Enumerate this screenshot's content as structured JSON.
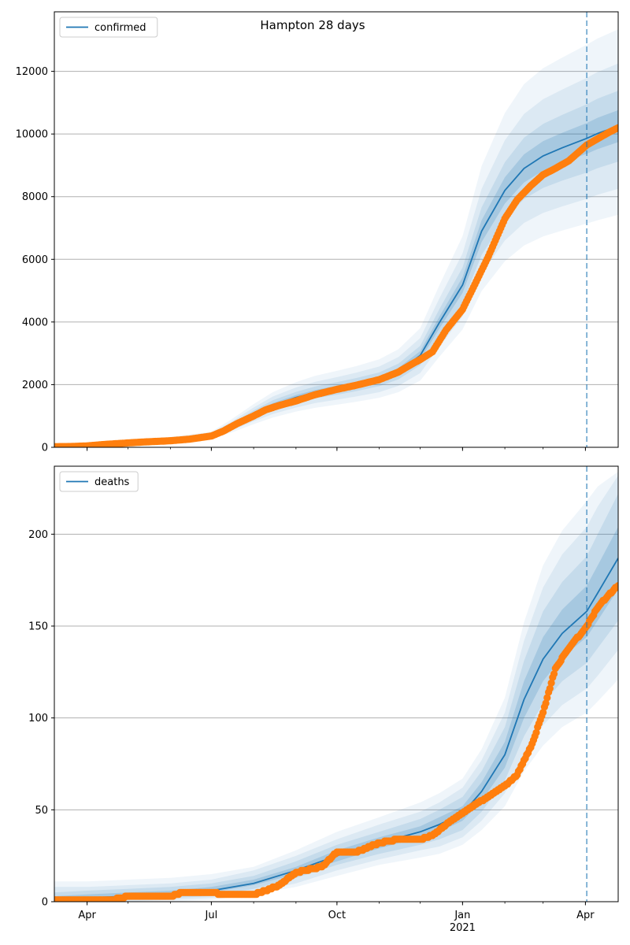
{
  "figure": {
    "title": "Hampton 28 days"
  },
  "colors": {
    "model_line": "#1f77b4",
    "observed_points": "#ff7f0e",
    "band": "#1f77b4",
    "grid": "#b0b0b0",
    "forecast_marker": "#1f77b4"
  },
  "chart_data": [
    {
      "type": "line",
      "title": "",
      "xlabel": "",
      "ylabel": "",
      "x_type": "date",
      "xlim": [
        "2020-03-08",
        "2021-04-25"
      ],
      "ylim": [
        0,
        13900
      ],
      "yticks": [
        0,
        2000,
        4000,
        6000,
        8000,
        10000,
        12000
      ],
      "grid": {
        "y": true,
        "x": false
      },
      "legend": {
        "entries": [
          "confirmed"
        ],
        "placement": "top-left"
      },
      "forecast_start": "2021-04-02",
      "x_ticks": [
        {
          "date": "2020-04-01",
          "label": "Apr"
        },
        {
          "date": "2020-07-01",
          "label": "Jul"
        },
        {
          "date": "2020-10-01",
          "label": "Oct"
        },
        {
          "date": "2021-01-01",
          "label": "Jan"
        },
        {
          "date": "2021-04-01",
          "label": "Apr"
        }
      ],
      "series": [
        {
          "name": "confirmed",
          "kind": "model",
          "dates": [
            "2020-03-08",
            "2020-04-01",
            "2020-05-01",
            "2020-06-01",
            "2020-07-01",
            "2020-07-15",
            "2020-08-01",
            "2020-08-15",
            "2020-09-01",
            "2020-09-15",
            "2020-10-01",
            "2020-10-15",
            "2020-11-01",
            "2020-11-15",
            "2020-12-01",
            "2020-12-15",
            "2021-01-01",
            "2021-01-15",
            "2021-02-01",
            "2021-02-15",
            "2021-03-01",
            "2021-03-15",
            "2021-04-02",
            "2021-04-10",
            "2021-04-25"
          ],
          "values": [
            0,
            60,
            150,
            250,
            390,
            660,
            1050,
            1340,
            1590,
            1750,
            1880,
            2000,
            2170,
            2420,
            2930,
            3980,
            5180,
            6900,
            8200,
            8900,
            9300,
            9560,
            9860,
            10020,
            10250
          ],
          "bands": [
            {
              "lower": [
                0,
                55,
                140,
                235,
                370,
                620,
                990,
                1270,
                1510,
                1670,
                1790,
                1910,
                2070,
                2310,
                2790,
                3790,
                4930,
                6550,
                7780,
                8450,
                8830,
                9080,
                9370,
                9520,
                9740
              ],
              "upper": [
                0,
                65,
                160,
                265,
                410,
                700,
                1110,
                1410,
                1670,
                1830,
                1970,
                2090,
                2270,
                2530,
                3070,
                4170,
                5430,
                7250,
                8620,
                9350,
                9770,
                10040,
                10350,
                10520,
                10760
              ]
            },
            {
              "lower": [
                0,
                50,
                130,
                215,
                345,
                580,
                920,
                1180,
                1410,
                1560,
                1680,
                1790,
                1950,
                2170,
                2620,
                3550,
                4620,
                6140,
                7300,
                7920,
                8280,
                8510,
                8770,
                8910,
                9120
              ],
              "upper": [
                0,
                70,
                170,
                285,
                435,
                740,
                1180,
                1500,
                1770,
                1940,
                2080,
                2210,
                2390,
                2670,
                3240,
                4410,
                5740,
                7660,
                9100,
                9880,
                10320,
                10610,
                10950,
                11130,
                11380
              ]
            },
            {
              "lower": [
                0,
                45,
                115,
                195,
                315,
                520,
                830,
                1060,
                1270,
                1410,
                1520,
                1620,
                1760,
                1960,
                2370,
                3210,
                4180,
                5550,
                6600,
                7160,
                7480,
                7690,
                7930,
                8060,
                8250
              ],
              "upper": [
                0,
                75,
                185,
                305,
                465,
                800,
                1270,
                1620,
                1910,
                2090,
                2240,
                2380,
                2580,
                2880,
                3490,
                4750,
                6190,
                8250,
                9800,
                10640,
                11110,
                11420,
                11790,
                11980,
                12250
              ]
            },
            {
              "lower": [
                0,
                40,
                100,
                170,
                280,
                460,
                740,
                950,
                1140,
                1260,
                1360,
                1450,
                1580,
                1760,
                2130,
                2890,
                3760,
                4990,
                5940,
                6440,
                6730,
                6920,
                7140,
                7250,
                7420
              ],
              "upper": [
                0,
                80,
                200,
                330,
                500,
                870,
                1380,
                1760,
                2080,
                2280,
                2440,
                2590,
                2810,
                3130,
                3800,
                5170,
                6740,
                8980,
                10670,
                11590,
                12100,
                12440,
                12850,
                13050,
                13340
              ]
            }
          ]
        },
        {
          "name": "observed",
          "kind": "points",
          "dates": [
            "2020-03-08",
            "2020-03-20",
            "2020-04-01",
            "2020-04-15",
            "2020-05-01",
            "2020-05-15",
            "2020-06-01",
            "2020-06-15",
            "2020-07-01",
            "2020-07-10",
            "2020-07-20",
            "2020-08-01",
            "2020-08-10",
            "2020-08-20",
            "2020-09-01",
            "2020-09-15",
            "2020-10-01",
            "2020-10-15",
            "2020-11-01",
            "2020-11-15",
            "2020-11-25",
            "2020-12-01",
            "2020-12-10",
            "2020-12-20",
            "2021-01-01",
            "2021-01-10",
            "2021-01-20",
            "2021-02-01",
            "2021-02-10",
            "2021-02-20",
            "2021-03-01",
            "2021-03-10",
            "2021-03-20",
            "2021-04-02",
            "2021-04-10",
            "2021-04-18",
            "2021-04-25"
          ],
          "values": [
            20,
            25,
            45,
            95,
            140,
            175,
            210,
            260,
            360,
            520,
            760,
            1000,
            1200,
            1340,
            1480,
            1680,
            1850,
            1980,
            2160,
            2400,
            2660,
            2800,
            3050,
            3750,
            4400,
            5200,
            6100,
            7300,
            7900,
            8350,
            8700,
            8900,
            9150,
            9650,
            9850,
            10050,
            10200
          ]
        }
      ]
    },
    {
      "type": "line",
      "title": "",
      "xlabel": "",
      "ylabel": "",
      "x_type": "date",
      "xlim": [
        "2020-03-08",
        "2021-04-25"
      ],
      "ylim": [
        0,
        237
      ],
      "yticks": [
        0,
        50,
        100,
        150,
        200
      ],
      "grid": {
        "y": true,
        "x": false
      },
      "legend": {
        "entries": [
          "deaths"
        ],
        "placement": "top-left"
      },
      "forecast_start": "2021-04-02",
      "x_ticks": [
        {
          "date": "2020-04-01",
          "label": "Apr"
        },
        {
          "date": "2020-07-01",
          "label": "Jul"
        },
        {
          "date": "2020-10-01",
          "label": "Oct"
        },
        {
          "date": "2021-01-01",
          "label": "Jan",
          "sublabel": "2021"
        },
        {
          "date": "2021-04-01",
          "label": "Apr"
        }
      ],
      "series": [
        {
          "name": "deaths",
          "kind": "model",
          "dates": [
            "2020-03-08",
            "2020-04-01",
            "2020-05-01",
            "2020-06-01",
            "2020-07-01",
            "2020-08-01",
            "2020-09-01",
            "2020-10-01",
            "2020-11-01",
            "2020-12-01",
            "2020-12-15",
            "2021-01-01",
            "2021-01-15",
            "2021-02-01",
            "2021-02-15",
            "2021-03-01",
            "2021-03-15",
            "2021-04-02",
            "2021-04-10",
            "2021-04-25"
          ],
          "values": [
            1,
            2,
            3,
            4,
            6,
            10,
            17,
            25,
            32,
            38,
            42,
            48,
            60,
            80,
            110,
            132,
            146,
            158,
            168,
            187
          ],
          "bands": [
            {
              "lower": [
                0,
                1,
                2,
                3,
                5,
                9,
                15,
                22,
                29,
                35,
                38,
                44,
                55,
                73,
                100,
                120,
                133,
                144,
                153,
                170
              ],
              "upper": [
                3,
                4,
                5,
                6,
                8,
                12,
                19,
                28,
                35,
                41,
                46,
                52,
                65,
                87,
                120,
                144,
                159,
                172,
                183,
                204
              ]
            },
            {
              "lower": [
                0,
                0,
                1,
                2,
                3,
                7,
                13,
                20,
                26,
                31,
                34,
                39,
                49,
                66,
                90,
                108,
                120,
                130,
                138,
                153
              ],
              "upper": [
                5,
                6,
                7,
                8,
                10,
                14,
                22,
                31,
                38,
                45,
                50,
                57,
                71,
                95,
                131,
                158,
                174,
                188,
                200,
                222
              ]
            },
            {
              "lower": [
                0,
                0,
                0,
                1,
                2,
                5,
                10,
                17,
                23,
                28,
                30,
                35,
                44,
                59,
                80,
                96,
                107,
                116,
                123,
                137
              ],
              "upper": [
                8,
                8,
                9,
                10,
                12,
                17,
                25,
                34,
                42,
                49,
                54,
                62,
                77,
                103,
                142,
                171,
                189,
                204,
                215,
                232
              ]
            },
            {
              "lower": [
                0,
                0,
                0,
                0,
                1,
                4,
                8,
                14,
                20,
                24,
                26,
                31,
                39,
                52,
                71,
                85,
                95,
                103,
                109,
                121
              ],
              "upper": [
                11,
                11,
                12,
                13,
                15,
                19,
                28,
                38,
                46,
                54,
                59,
                67,
                83,
                111,
                152,
                183,
                202,
                218,
                226,
                234
              ]
            }
          ]
        },
        {
          "name": "observed",
          "kind": "points",
          "dates": [
            "2020-03-08",
            "2020-04-01",
            "2020-04-20",
            "2020-05-01",
            "2020-06-01",
            "2020-06-10",
            "2020-07-01",
            "2020-07-10",
            "2020-08-01",
            "2020-08-10",
            "2020-08-20",
            "2020-09-01",
            "2020-09-20",
            "2020-10-01",
            "2020-10-15",
            "2020-11-01",
            "2020-11-15",
            "2020-12-01",
            "2020-12-10",
            "2020-12-20",
            "2021-01-01",
            "2021-01-10",
            "2021-01-20",
            "2021-02-01",
            "2021-02-10",
            "2021-02-20",
            "2021-03-01",
            "2021-03-10",
            "2021-03-20",
            "2021-04-02",
            "2021-04-10",
            "2021-04-18",
            "2021-04-25"
          ],
          "values": [
            1,
            1,
            1,
            3,
            3,
            5,
            5,
            4,
            4,
            6,
            9,
            16,
            19,
            27,
            27,
            32,
            34,
            34,
            36,
            42,
            48,
            53,
            57,
            63,
            69,
            84,
            103,
            127,
            138,
            150,
            160,
            167,
            172
          ]
        }
      ]
    }
  ]
}
